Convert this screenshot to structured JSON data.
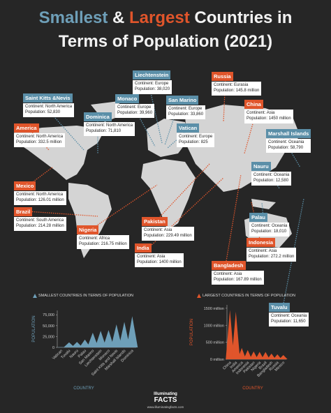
{
  "header": {
    "title_smallest": "Smallest",
    "title_amp": "&",
    "title_largest": "Largest",
    "title_rest1": "Countries in",
    "title_rest2": "Terms of Population (2021)"
  },
  "callouts": [
    {
      "name": "Liechtenstein",
      "continent": "Continent: Europe",
      "population": "Population: 38,020",
      "color": "#5b8fa8"
    },
    {
      "name": "Saint Kitts &Nevis",
      "continent": "Continent: North America",
      "population": "Population: 52,830",
      "color": "#5b8fa8"
    },
    {
      "name": "Monaco",
      "continent": "Continent: Europe",
      "population": "Population: 39,960",
      "color": "#5b8fa8"
    },
    {
      "name": "San Marino",
      "continent": "Continent: Europe",
      "population": "Population: 33,860",
      "color": "#5b8fa8"
    },
    {
      "name": "Dominica",
      "continent": "Continent: North America",
      "population": "Population: 71,810",
      "color": "#5b8fa8"
    },
    {
      "name": "Vatican",
      "continent": "Continent: Europe",
      "population": "Population: 825",
      "color": "#5b8fa8"
    },
    {
      "name": "Marshall Islands",
      "continent": "Continent: Oceania",
      "population": "Population: 58,790",
      "color": "#5b8fa8"
    },
    {
      "name": "Nauru",
      "continent": "Continent: Oceania",
      "population": "Population: 12,580",
      "color": "#5b8fa8"
    },
    {
      "name": "Palau",
      "continent": "Continent: Oceania",
      "population": "Population: 18,010",
      "color": "#5b8fa8"
    },
    {
      "name": "Tuvalu",
      "continent": "Continent: Oceania",
      "population": "Population: 11,650",
      "color": "#5b8fa8"
    },
    {
      "name": "Russia",
      "continent": "Continent: Eurasia",
      "population": "Population: 145.8 million",
      "color": "#e0552b"
    },
    {
      "name": "China",
      "continent": "Continent: Asia",
      "population": "Population: 1450 million",
      "color": "#e0552b"
    },
    {
      "name": "America",
      "continent": "Continent: North America",
      "population": "Population: 332.5 million",
      "color": "#e0552b"
    },
    {
      "name": "Mexico",
      "continent": "Continent: North America",
      "population": "Population: 126.01 million",
      "color": "#e0552b"
    },
    {
      "name": "Brazil",
      "continent": "Continent: South America",
      "population": "Population: 214.28 million",
      "color": "#e0552b"
    },
    {
      "name": "Nigeria",
      "continent": "Continent: Africa",
      "population": "Population: 216.75 million",
      "color": "#e0552b"
    },
    {
      "name": "Pakistan",
      "continent": "Continent: Asia",
      "population": "Population: 229.49 million",
      "color": "#e0552b"
    },
    {
      "name": "India",
      "continent": "Continent: Asia",
      "population": "Population: 1400 million",
      "color": "#e0552b"
    },
    {
      "name": "Bangladesh",
      "continent": "Continent: Asia",
      "population": "Population: 167.89 million",
      "color": "#e0552b"
    },
    {
      "name": "Indonesia",
      "continent": "Continent: Asia",
      "population": "Population: 272.2 million",
      "color": "#e0552b"
    }
  ],
  "chart_data": [
    {
      "type": "triangle",
      "title": "SMALLEST COUNTRIES IN TERMS OF POPULATION",
      "ylabel": "POPULATION",
      "xlabel": "COUNTRY",
      "color": "#6e9fb8",
      "categories": [
        "Vatican",
        "Tuvalu",
        "Nauru",
        "Palau",
        "San Marino",
        "Liechtenstein",
        "Monaco",
        "Saint Kitts and Nevis",
        "Marshall Islands",
        "Dominica"
      ],
      "values": [
        825,
        11650,
        12580,
        18010,
        33860,
        38020,
        39960,
        52830,
        58790,
        71810
      ],
      "ylim": [
        0,
        85000
      ],
      "yticks": [
        0,
        {
          "value": 25000,
          "label": "25,000"
        },
        {
          "value": 50000,
          "label": "50,000"
        },
        {
          "value": 75000,
          "label": "75,000"
        }
      ]
    },
    {
      "type": "triangle",
      "title": "LARGEST COUNTRIES IN TERMS OF POPULATION",
      "ylabel": "POPULATION",
      "xlabel": "COUNTRY",
      "color": "#e0552b",
      "categories": [
        "China",
        "India",
        "America",
        "Indonesia",
        "Pakistan",
        "Nigeria",
        "Brazil",
        "Bangladesh",
        "Russia",
        "Mexico"
      ],
      "values": [
        1450,
        1400,
        332.5,
        272.2,
        229.49,
        216.75,
        214.28,
        167.89,
        145.8,
        126.01
      ],
      "ylim": [
        0,
        1600
      ],
      "yticks": [
        {
          "value": 0,
          "label": "0 million"
        },
        {
          "value": 500,
          "label": "500 million"
        },
        {
          "value": 1000,
          "label": "1000 million"
        },
        {
          "value": 1500,
          "label": "1500 million"
        }
      ]
    }
  ],
  "footer": {
    "logo_top": "Illuminating",
    "logo_main": "FACTS",
    "url": "www.illuminatingfacts.com"
  }
}
